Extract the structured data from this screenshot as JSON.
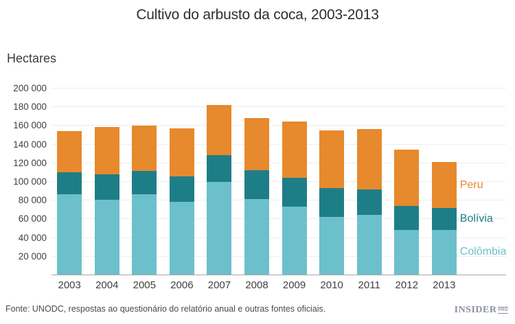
{
  "page": {
    "title": "Cultivo do arbusto da coca, 2003-2013",
    "unit_label": "Hectares",
    "source_note": "Fonte: UNODC, respostas ao questionário do relatório anual e outras fontes oficiais.",
    "logo": {
      "text": "INSIDER",
      "badge": "PRO"
    }
  },
  "chart_data": {
    "type": "bar",
    "stacked": true,
    "title": "Cultivo do arbusto da coca, 2003-2013",
    "ylabel": "Hectares",
    "xlabel": "",
    "categories": [
      "2003",
      "2004",
      "2005",
      "2006",
      "2007",
      "2008",
      "2009",
      "2010",
      "2011",
      "2012",
      "2013"
    ],
    "series": [
      {
        "name": "Colômbia",
        "color": "#6cc0cb",
        "values": [
          86000,
          80000,
          86000,
          78000,
          99000,
          81000,
          73000,
          62000,
          64000,
          48000,
          48000
        ]
      },
      {
        "name": "Bolívia",
        "color": "#1e7e87",
        "values": [
          23600,
          27700,
          25400,
          27500,
          28900,
          30500,
          30900,
          31000,
          27200,
          25300,
          23000
        ]
      },
      {
        "name": "Peru",
        "color": "#e7892d",
        "values": [
          44200,
          50300,
          48200,
          51400,
          53700,
          56100,
          59900,
          61200,
          64400,
          60400,
          49800
        ]
      }
    ],
    "ylim": [
      0,
      200000
    ],
    "ytick_step": 20000,
    "ytick_labels": [
      "20 000",
      "40 000",
      "60 000",
      "80 000",
      "100 000",
      "120 000",
      "140 000",
      "160 000",
      "180 000",
      "200 000"
    ],
    "grid": true,
    "legend_position": "right-of-last-bar",
    "legend_order": [
      "Peru",
      "Bolívia",
      "Colômbia"
    ],
    "axis_color": "#a6a6a6",
    "grid_color": "#ededed",
    "text_color": "#3f3f3f"
  }
}
